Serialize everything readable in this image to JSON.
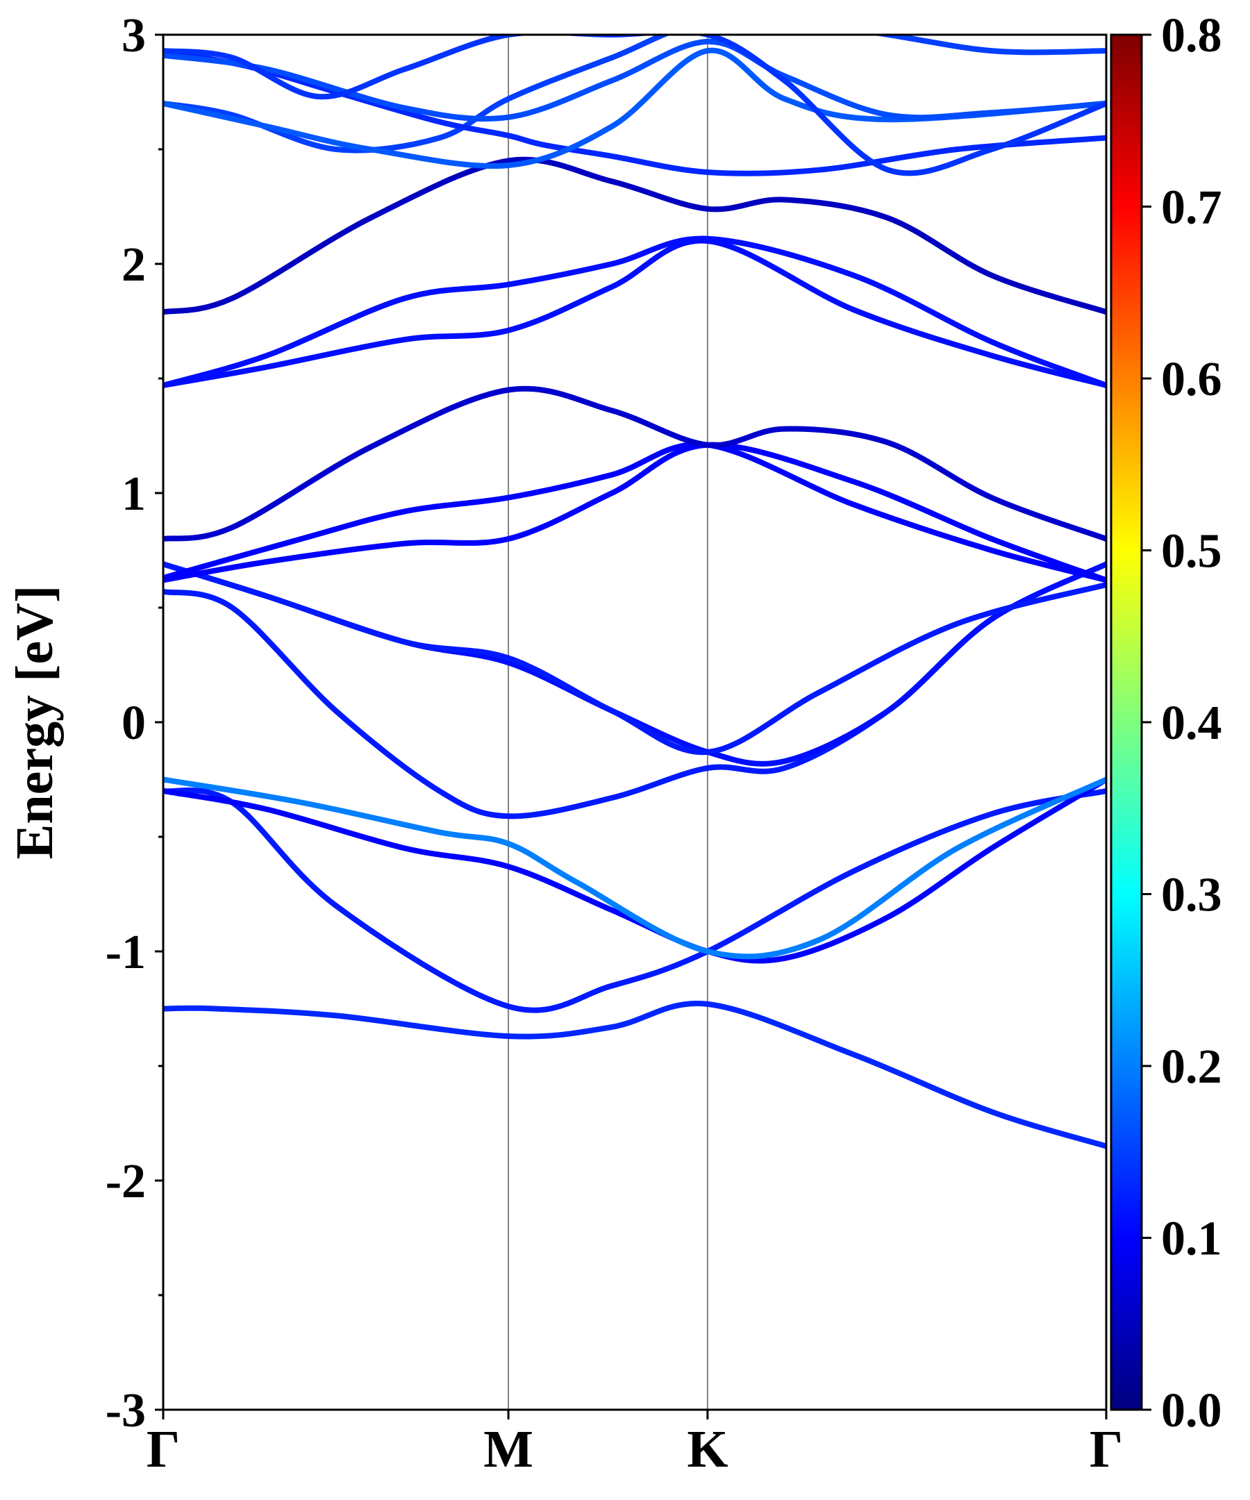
{
  "chart_data": {
    "type": "line",
    "title": "",
    "xlabel": "",
    "ylabel": "Energy [eV]",
    "ylim": [
      -3,
      3
    ],
    "yticks": [
      "-3",
      "-2",
      "-1",
      "0",
      "1",
      "2",
      "3"
    ],
    "k_points": [
      {
        "label": "Γ",
        "position": 0.0
      },
      {
        "label": "M",
        "position": 1.0
      },
      {
        "label": "K",
        "position": 1.577
      },
      {
        "label": "Γ",
        "position": 2.732
      }
    ],
    "grid": false,
    "colorbar": {
      "colormap": "jet",
      "range": [
        0.0,
        0.8
      ],
      "tick_labels": [
        "0.0",
        "0.1",
        "0.2",
        "0.3",
        "0.4",
        "0.5",
        "0.6",
        "0.7",
        "0.8"
      ]
    },
    "series": [
      {
        "color_value": 0.13,
        "points": [
          [
            0,
            -1.25
          ],
          [
            0.15,
            -1.25
          ],
          [
            0.5,
            -1.28
          ],
          [
            1.0,
            -1.37
          ],
          [
            1.3,
            -1.33
          ],
          [
            1.577,
            -1.23
          ],
          [
            2.0,
            -1.45
          ],
          [
            2.4,
            -1.7
          ],
          [
            2.732,
            -1.85
          ]
        ]
      },
      {
        "color_value": 0.12,
        "points": [
          [
            0,
            -0.3
          ],
          [
            0.2,
            -0.35
          ],
          [
            0.5,
            -0.8
          ],
          [
            1.0,
            -1.24
          ],
          [
            1.3,
            -1.15
          ],
          [
            1.577,
            -1.0
          ],
          [
            2.0,
            -0.65
          ],
          [
            2.4,
            -0.4
          ],
          [
            2.732,
            -0.3
          ]
        ]
      },
      {
        "color_value": 0.1,
        "points": [
          [
            0,
            -0.3
          ],
          [
            0.3,
            -0.38
          ],
          [
            0.7,
            -0.55
          ],
          [
            1.0,
            -0.63
          ],
          [
            1.3,
            -0.82
          ],
          [
            1.577,
            -1.0
          ],
          [
            1.8,
            -1.03
          ],
          [
            2.1,
            -0.85
          ],
          [
            2.4,
            -0.55
          ],
          [
            2.732,
            -0.25
          ]
        ]
      },
      {
        "color_value": 0.2,
        "points": [
          [
            0,
            -0.25
          ],
          [
            0.4,
            -0.35
          ],
          [
            0.8,
            -0.48
          ],
          [
            1.0,
            -0.53
          ],
          [
            1.2,
            -0.7
          ],
          [
            1.577,
            -1.0
          ],
          [
            1.9,
            -0.95
          ],
          [
            2.3,
            -0.55
          ],
          [
            2.732,
            -0.25
          ]
        ]
      },
      {
        "color_value": 0.12,
        "points": [
          [
            0,
            0.57
          ],
          [
            0.2,
            0.5
          ],
          [
            0.5,
            0.05
          ],
          [
            0.8,
            -0.3
          ],
          [
            1.0,
            -0.41
          ],
          [
            1.3,
            -0.33
          ],
          [
            1.577,
            -0.2
          ],
          [
            1.8,
            -0.2
          ],
          [
            2.1,
            0.05
          ],
          [
            2.4,
            0.45
          ],
          [
            2.732,
            0.69
          ]
        ]
      },
      {
        "color_value": 0.11,
        "points": [
          [
            0,
            0.69
          ],
          [
            0.3,
            0.55
          ],
          [
            0.7,
            0.35
          ],
          [
            1.0,
            0.26
          ],
          [
            1.3,
            0.05
          ],
          [
            1.577,
            -0.13
          ],
          [
            1.8,
            -0.17
          ],
          [
            2.1,
            0.05
          ],
          [
            2.4,
            0.45
          ],
          [
            2.732,
            0.69
          ]
        ]
      },
      {
        "color_value": 0.12,
        "points": [
          [
            0,
            0.69
          ],
          [
            0.3,
            0.55
          ],
          [
            0.7,
            0.35
          ],
          [
            1.0,
            0.28
          ],
          [
            1.3,
            0.05
          ],
          [
            1.577,
            -0.13
          ],
          [
            1.9,
            0.13
          ],
          [
            2.3,
            0.43
          ],
          [
            2.732,
            0.6
          ]
        ]
      },
      {
        "color_value": 0.1,
        "points": [
          [
            0,
            0.62
          ],
          [
            0.3,
            0.7
          ],
          [
            0.7,
            0.78
          ],
          [
            1.0,
            0.8
          ],
          [
            1.3,
            1.0
          ],
          [
            1.577,
            1.21
          ],
          [
            2.0,
            1.05
          ],
          [
            2.4,
            0.8
          ],
          [
            2.732,
            0.62
          ]
        ]
      },
      {
        "color_value": 0.1,
        "points": [
          [
            0,
            0.63
          ],
          [
            0.4,
            0.8
          ],
          [
            0.7,
            0.92
          ],
          [
            1.0,
            0.98
          ],
          [
            1.3,
            1.08
          ],
          [
            1.577,
            1.21
          ],
          [
            2.0,
            0.95
          ],
          [
            2.4,
            0.75
          ],
          [
            2.732,
            0.62
          ]
        ]
      },
      {
        "color_value": 0.06,
        "points": [
          [
            0,
            0.8
          ],
          [
            0.2,
            0.85
          ],
          [
            0.6,
            1.2
          ],
          [
            1.0,
            1.45
          ],
          [
            1.3,
            1.36
          ],
          [
            1.577,
            1.21
          ],
          [
            1.8,
            1.28
          ],
          [
            2.1,
            1.22
          ],
          [
            2.4,
            0.98
          ],
          [
            2.732,
            0.8
          ]
        ]
      },
      {
        "color_value": 0.11,
        "points": [
          [
            0,
            1.47
          ],
          [
            0.3,
            1.55
          ],
          [
            0.7,
            1.67
          ],
          [
            1.0,
            1.71
          ],
          [
            1.3,
            1.9
          ],
          [
            1.577,
            2.1
          ],
          [
            2.0,
            1.8
          ],
          [
            2.4,
            1.6
          ],
          [
            2.732,
            1.47
          ]
        ]
      },
      {
        "color_value": 0.11,
        "points": [
          [
            0,
            1.47
          ],
          [
            0.3,
            1.6
          ],
          [
            0.7,
            1.85
          ],
          [
            1.0,
            1.91
          ],
          [
            1.3,
            2.0
          ],
          [
            1.577,
            2.11
          ],
          [
            2.0,
            1.95
          ],
          [
            2.4,
            1.66
          ],
          [
            2.732,
            1.47
          ]
        ]
      },
      {
        "color_value": 0.05,
        "points": [
          [
            0,
            1.79
          ],
          [
            0.2,
            1.85
          ],
          [
            0.6,
            2.2
          ],
          [
            1.0,
            2.45
          ],
          [
            1.3,
            2.36
          ],
          [
            1.577,
            2.24
          ],
          [
            1.8,
            2.28
          ],
          [
            2.1,
            2.2
          ],
          [
            2.4,
            1.95
          ],
          [
            2.732,
            1.79
          ]
        ]
      },
      {
        "color_value": 0.15,
        "points": [
          [
            0,
            2.7
          ],
          [
            0.2,
            2.65
          ],
          [
            0.5,
            2.5
          ],
          [
            0.8,
            2.55
          ],
          [
            1.0,
            2.72
          ],
          [
            1.3,
            2.9
          ],
          [
            1.577,
            3.05
          ],
          [
            2.0,
            3.02
          ],
          [
            2.4,
            2.93
          ],
          [
            2.732,
            2.93
          ]
        ]
      },
      {
        "color_value": 0.13,
        "points": [
          [
            0,
            2.93
          ],
          [
            0.25,
            2.86
          ],
          [
            0.5,
            2.75
          ],
          [
            0.8,
            2.62
          ],
          [
            1.0,
            2.56
          ],
          [
            1.1,
            2.52
          ],
          [
            1.3,
            2.47
          ],
          [
            1.577,
            2.4
          ],
          [
            1.9,
            2.41
          ],
          [
            2.3,
            2.5
          ],
          [
            2.732,
            2.55
          ]
        ]
      },
      {
        "color_value": 0.17,
        "points": [
          [
            0,
            2.7
          ],
          [
            0.3,
            2.6
          ],
          [
            0.6,
            2.5
          ],
          [
            1.0,
            2.43
          ],
          [
            1.3,
            2.6
          ],
          [
            1.577,
            2.93
          ],
          [
            1.8,
            2.72
          ],
          [
            2.1,
            2.63
          ],
          [
            2.732,
            2.7
          ]
        ]
      },
      {
        "color_value": 0.16,
        "points": [
          [
            0,
            2.91
          ],
          [
            0.3,
            2.85
          ],
          [
            0.7,
            2.68
          ],
          [
            1.0,
            2.64
          ],
          [
            1.3,
            2.8
          ],
          [
            1.577,
            2.97
          ],
          [
            1.8,
            2.82
          ],
          [
            2.1,
            2.65
          ],
          [
            2.4,
            2.66
          ],
          [
            2.732,
            2.7
          ]
        ]
      },
      {
        "color_value": 0.14,
        "points": [
          [
            0,
            2.93
          ],
          [
            0.2,
            2.9
          ],
          [
            0.45,
            2.73
          ],
          [
            0.7,
            2.85
          ],
          [
            1.0,
            3.0
          ],
          [
            1.3,
            3.0
          ],
          [
            1.577,
            3.0
          ],
          [
            1.8,
            2.8
          ],
          [
            2.1,
            2.41
          ],
          [
            2.4,
            2.5
          ],
          [
            2.732,
            2.7
          ]
        ]
      }
    ]
  }
}
